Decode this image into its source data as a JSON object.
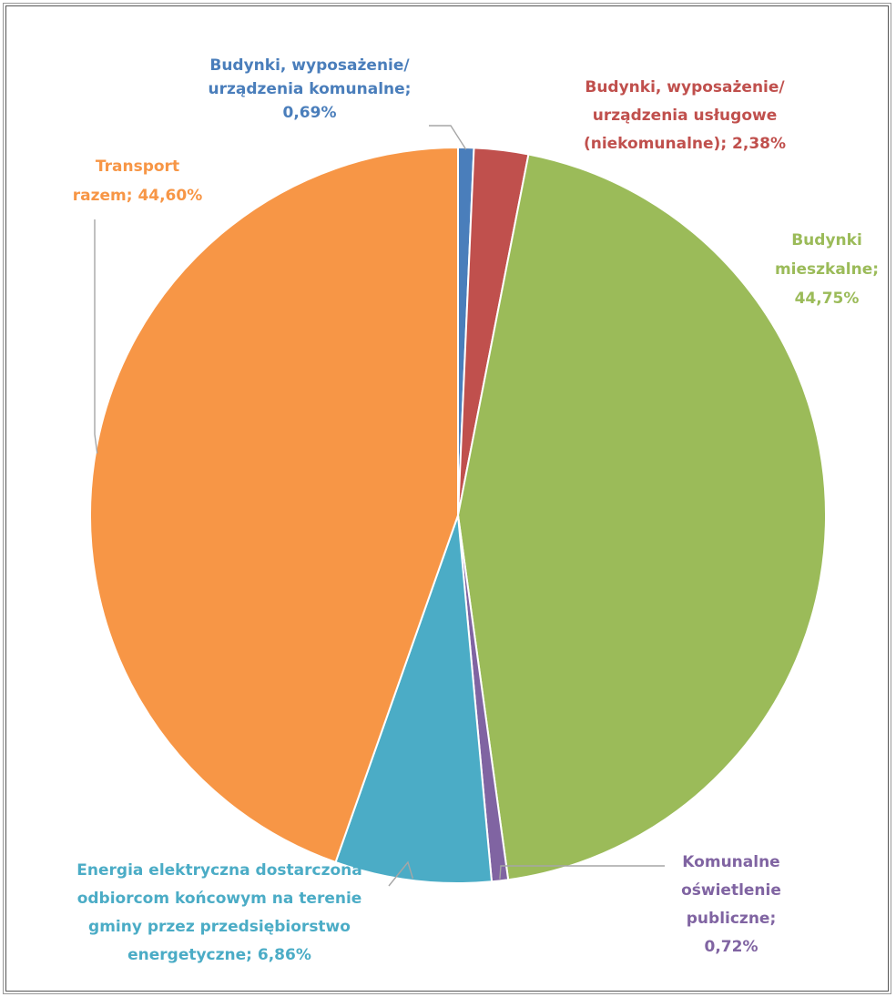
{
  "chart_data": {
    "type": "pie",
    "title": "",
    "start_angle_deg": 0,
    "direction": "clockwise",
    "slices": [
      {
        "name": "Budynki, wyposażenie/ urządzenia komunalne",
        "value": 0.69,
        "value_label": "0,69%",
        "label_lines": [
          "Budynki, wyposażenie/",
          "urządzenia komunalne;",
          "0,69%"
        ],
        "color": "#4a7ebb"
      },
      {
        "name": "Budynki, wyposażenie/ urządzenia usługowe (niekomunalne)",
        "value": 2.38,
        "value_label": "2,38%",
        "label_lines": [
          "Budynki, wyposażenie/",
          "urządzenia usługowe",
          "(niekomunalne); 2,38%"
        ],
        "color": "#c0504d"
      },
      {
        "name": "Budynki mieszkalne",
        "value": 44.75,
        "value_label": "44,75%",
        "label_lines": [
          "Budynki",
          "mieszkalne;",
          "44,75%"
        ],
        "color": "#9bbb59"
      },
      {
        "name": "Komunalne oświetlenie publiczne",
        "value": 0.72,
        "value_label": "0,72%",
        "label_lines": [
          "Komunalne",
          "oświetlenie",
          "publiczne;",
          "0,72%"
        ],
        "color": "#8064a2"
      },
      {
        "name": "Energia elektryczna dostarczona odbiorcom końcowym na terenie gminy przez przedsiębiorstwo energetyczne",
        "value": 6.86,
        "value_label": "6,86%",
        "label_lines": [
          "Energia elektryczna dostarczona",
          "odbiorcom końcowym na terenie",
          "gminy przez przedsiębiorstwo",
          "energetyczne; 6,86%"
        ],
        "color": "#4bacc6"
      },
      {
        "name": "Transport razem",
        "value": 44.6,
        "value_label": "44,60%",
        "label_lines": [
          "Transport",
          "razem; 44,60%"
        ],
        "color": "#f79646"
      }
    ]
  }
}
